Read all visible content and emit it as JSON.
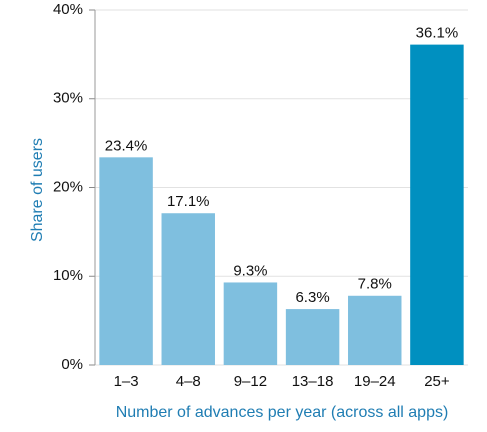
{
  "chart_data": {
    "type": "bar",
    "x_label": "Number of advances per year (across all apps)",
    "y_label": "Share of users",
    "categories": [
      "1–3",
      "4–8",
      "9–12",
      "13–18",
      "19–24",
      "25+"
    ],
    "values": [
      23.4,
      17.1,
      9.3,
      6.3,
      7.8,
      36.1
    ],
    "value_labels": [
      "23.4%",
      "17.1%",
      "9.3%",
      "6.3%",
      "7.8%",
      "36.1%"
    ],
    "colors": [
      "#7fbfdf",
      "#7fbfdf",
      "#7fbfdf",
      "#7fbfdf",
      "#7fbfdf",
      "#0090c0"
    ],
    "ylim": [
      0,
      40
    ],
    "yticks": [
      {
        "value": 0,
        "label": "0%"
      },
      {
        "value": 10,
        "label": "10%"
      },
      {
        "value": 20,
        "label": "20%"
      },
      {
        "value": 30,
        "label": "30%"
      },
      {
        "value": 40,
        "label": "40%"
      }
    ],
    "grid": true
  }
}
